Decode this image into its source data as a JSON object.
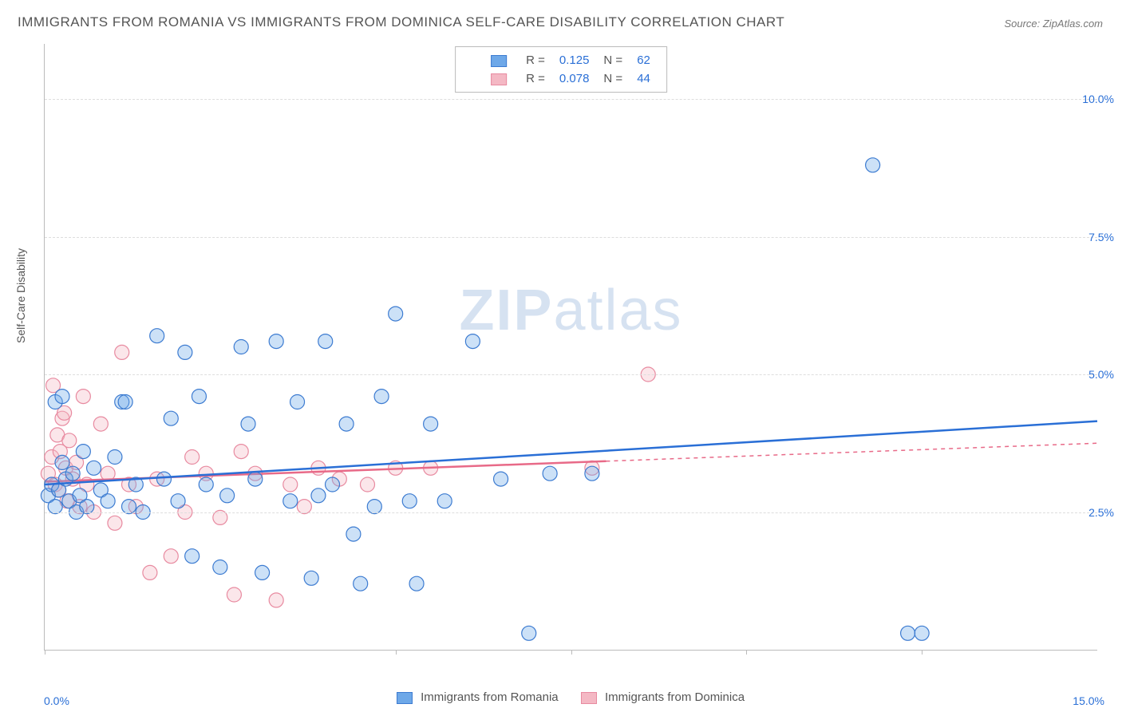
{
  "title": "IMMIGRANTS FROM ROMANIA VS IMMIGRANTS FROM DOMINICA SELF-CARE DISABILITY CORRELATION CHART",
  "source": "Source: ZipAtlas.com",
  "watermark": {
    "zip": "ZIP",
    "atlas": "atlas"
  },
  "chart": {
    "type": "scatter",
    "background_color": "#ffffff",
    "grid_color": "#dddddd",
    "axis_color": "#bbbbbb",
    "xlim": [
      0.0,
      15.0
    ],
    "ylim": [
      0.0,
      11.0
    ],
    "yticks": [
      2.5,
      5.0,
      7.5,
      10.0
    ],
    "ytick_labels": [
      "2.5%",
      "5.0%",
      "7.5%",
      "10.0%"
    ],
    "xtick_min_label": "0.0%",
    "xtick_max_label": "15.0%",
    "xtick_marks": [
      0.0,
      5.0,
      7.5,
      10.0,
      12.5
    ],
    "ylabel": "Self-Care Disability",
    "tick_fontsize": 14,
    "tick_color": "#2a6fd6",
    "label_fontsize": 14,
    "label_color": "#555555",
    "marker_radius": 9,
    "marker_stroke_width": 1.2,
    "marker_fill_opacity": 0.35,
    "trend_line_width": 2.5
  },
  "series": {
    "romania": {
      "label": "Immigrants from Romania",
      "color": "#6ea8e8",
      "stroke": "#3c7bd1",
      "trend_color": "#2a6fd6",
      "R": "0.125",
      "N": "62",
      "trend": {
        "x1": 0.0,
        "y1": 3.0,
        "x2": 15.0,
        "y2": 4.15,
        "dashed_from": null
      },
      "points": [
        [
          0.05,
          2.8
        ],
        [
          0.1,
          3.0
        ],
        [
          0.15,
          2.6
        ],
        [
          0.2,
          2.9
        ],
        [
          0.25,
          3.4
        ],
        [
          0.3,
          3.1
        ],
        [
          0.35,
          2.7
        ],
        [
          0.4,
          3.2
        ],
        [
          0.45,
          2.5
        ],
        [
          0.5,
          2.8
        ],
        [
          0.55,
          3.6
        ],
        [
          0.6,
          2.6
        ],
        [
          0.7,
          3.3
        ],
        [
          0.8,
          2.9
        ],
        [
          0.9,
          2.7
        ],
        [
          1.0,
          3.5
        ],
        [
          1.1,
          4.5
        ],
        [
          1.15,
          4.5
        ],
        [
          1.2,
          2.6
        ],
        [
          1.3,
          3.0
        ],
        [
          1.4,
          2.5
        ],
        [
          1.6,
          5.7
        ],
        [
          1.7,
          3.1
        ],
        [
          1.8,
          4.2
        ],
        [
          1.9,
          2.7
        ],
        [
          2.0,
          5.4
        ],
        [
          2.1,
          1.7
        ],
        [
          2.2,
          4.6
        ],
        [
          2.3,
          3.0
        ],
        [
          2.5,
          1.5
        ],
        [
          2.6,
          2.8
        ],
        [
          2.8,
          5.5
        ],
        [
          2.9,
          4.1
        ],
        [
          3.0,
          3.1
        ],
        [
          3.1,
          1.4
        ],
        [
          3.3,
          5.6
        ],
        [
          3.5,
          2.7
        ],
        [
          3.6,
          4.5
        ],
        [
          3.8,
          1.3
        ],
        [
          3.9,
          2.8
        ],
        [
          4.0,
          5.6
        ],
        [
          4.1,
          3.0
        ],
        [
          4.3,
          4.1
        ],
        [
          4.4,
          2.1
        ],
        [
          4.5,
          1.2
        ],
        [
          4.7,
          2.6
        ],
        [
          4.8,
          4.6
        ],
        [
          5.0,
          6.1
        ],
        [
          5.2,
          2.7
        ],
        [
          5.3,
          1.2
        ],
        [
          5.5,
          4.1
        ],
        [
          5.7,
          2.7
        ],
        [
          6.1,
          5.6
        ],
        [
          6.5,
          3.1
        ],
        [
          6.9,
          0.3
        ],
        [
          7.2,
          3.2
        ],
        [
          7.8,
          3.2
        ],
        [
          11.8,
          8.8
        ],
        [
          12.3,
          0.3
        ],
        [
          12.5,
          0.3
        ],
        [
          0.15,
          4.5
        ],
        [
          0.25,
          4.6
        ]
      ]
    },
    "dominica": {
      "label": "Immigrants from Dominica",
      "color": "#f4b8c4",
      "stroke": "#e88aa0",
      "trend_color": "#e86a88",
      "R": "0.078",
      "N": "44",
      "trend": {
        "x1": 0.0,
        "y1": 3.05,
        "x2": 15.0,
        "y2": 3.75,
        "dashed_from": 8.0
      },
      "points": [
        [
          0.05,
          3.2
        ],
        [
          0.1,
          3.5
        ],
        [
          0.12,
          4.8
        ],
        [
          0.15,
          3.0
        ],
        [
          0.18,
          3.9
        ],
        [
          0.2,
          2.9
        ],
        [
          0.22,
          3.6
        ],
        [
          0.25,
          4.2
        ],
        [
          0.28,
          4.3
        ],
        [
          0.3,
          3.3
        ],
        [
          0.32,
          2.7
        ],
        [
          0.35,
          3.8
        ],
        [
          0.4,
          3.1
        ],
        [
          0.45,
          3.4
        ],
        [
          0.5,
          2.6
        ],
        [
          0.55,
          4.6
        ],
        [
          0.6,
          3.0
        ],
        [
          0.7,
          2.5
        ],
        [
          0.8,
          4.1
        ],
        [
          0.9,
          3.2
        ],
        [
          1.0,
          2.3
        ],
        [
          1.1,
          5.4
        ],
        [
          1.2,
          3.0
        ],
        [
          1.3,
          2.6
        ],
        [
          1.5,
          1.4
        ],
        [
          1.6,
          3.1
        ],
        [
          1.8,
          1.7
        ],
        [
          2.0,
          2.5
        ],
        [
          2.1,
          3.5
        ],
        [
          2.3,
          3.2
        ],
        [
          2.5,
          2.4
        ],
        [
          2.7,
          1.0
        ],
        [
          2.8,
          3.6
        ],
        [
          3.0,
          3.2
        ],
        [
          3.3,
          0.9
        ],
        [
          3.5,
          3.0
        ],
        [
          3.7,
          2.6
        ],
        [
          3.9,
          3.3
        ],
        [
          4.2,
          3.1
        ],
        [
          4.6,
          3.0
        ],
        [
          5.0,
          3.3
        ],
        [
          5.5,
          3.3
        ],
        [
          7.8,
          3.3
        ],
        [
          8.6,
          5.0
        ]
      ]
    }
  },
  "top_legend": {
    "R_label": "R  =",
    "N_label": "N  ="
  },
  "bottom_legend_fontsize": 15
}
